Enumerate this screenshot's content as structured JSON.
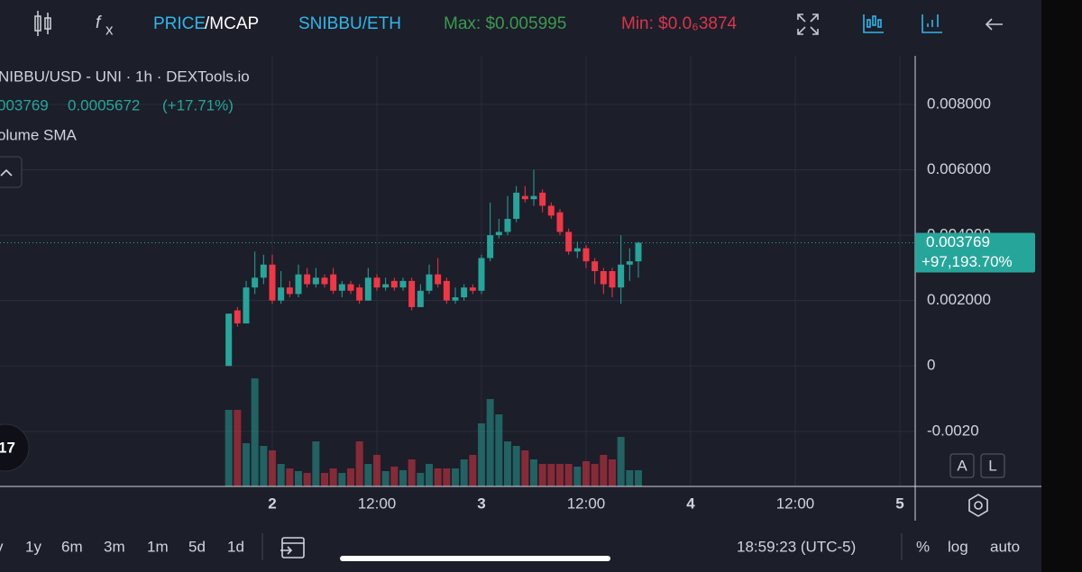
{
  "toolbar": {
    "price": "PRICE",
    "mcap": "/MCAP",
    "pair": "SNIBBU/ETH",
    "max": "Max: $0.005995",
    "min": "Min: $0.0₆3874"
  },
  "legend": {
    "title": "NIBBU/USD - UNI · 1h · DEXTools.io",
    "last": "003769",
    "change": "0.0005672",
    "change_pct": "(+17.71%)",
    "indicator": "olume SMA"
  },
  "footer": {
    "ranges": [
      "y",
      "1y",
      "6m",
      "3m",
      "1m",
      "5d",
      "1d"
    ],
    "clock": "18:59:23 (UTC-5)",
    "pct": "%",
    "log": "log",
    "auto": "auto"
  },
  "scale_buttons": [
    "A",
    "L"
  ],
  "chart_data": {
    "type": "candlestick",
    "ylim": [
      -0.003686,
      0.009486
    ],
    "yticks": [
      {
        "value": 0.008,
        "label": "0.008000"
      },
      {
        "value": 0.006,
        "label": "0.006000"
      },
      {
        "value": 0.004,
        "label": "0.004000"
      },
      {
        "value": 0.002,
        "label": "0.002000"
      },
      0,
      {
        "value": -0.002,
        "label": "-0.0020"
      }
    ],
    "xlim": [
      -31.24,
      73.76
    ],
    "xticks": [
      {
        "value": 0,
        "label": "2"
      },
      {
        "value": 12,
        "label": "12:00"
      },
      {
        "value": 24,
        "label": "3"
      },
      {
        "value": 36,
        "label": "12:00"
      },
      {
        "value": 48,
        "label": "4"
      },
      {
        "value": 60,
        "label": "12:00"
      },
      {
        "value": 72,
        "label": "5"
      }
    ],
    "grid": true,
    "up_color": "#26a69a",
    "down_color": "#f23645",
    "last_price": {
      "value": 0.003769,
      "label": "0.003769"
    },
    "last_change": "+97,193.70%",
    "x": [
      -5,
      -4,
      -3,
      -2,
      -1,
      0,
      1,
      2,
      3,
      4,
      5,
      6,
      7,
      8,
      9,
      10,
      11,
      12,
      13,
      14,
      15,
      16,
      17,
      18,
      19,
      20,
      21,
      22,
      23,
      24,
      25,
      26,
      27,
      28,
      29,
      30,
      31,
      32,
      33,
      34,
      35,
      36,
      37,
      38,
      39,
      40,
      41,
      42
    ],
    "open": [
      0,
      0.0017,
      0.0013,
      0.0024,
      0.0027,
      0.0031,
      0.002,
      0.0024,
      0.0022,
      0.0028,
      0.0025,
      0.0027,
      0.0028,
      0.0023,
      0.0025,
      0.0024,
      0.002,
      0.0027,
      0.0024,
      0.0026,
      0.0024,
      0.0026,
      0.0018,
      0.0023,
      0.0028,
      0.0026,
      0.002,
      0.0021,
      0.0024,
      0.0023,
      0.0033,
      0.004,
      0.0041,
      0.0045,
      0.0052,
      0.0051,
      0.0053,
      0.0049,
      0.0047,
      0.0041,
      0.0035,
      0.0036,
      0.0032,
      0.0029,
      0.0029,
      0.0024,
      0.0031,
      0.0032
    ],
    "high": [
      0.0016,
      0.0018,
      0.0026,
      0.0035,
      0.0034,
      0.0034,
      0.0029,
      0.0026,
      0.0031,
      0.003,
      0.003,
      0.0028,
      0.003,
      0.0026,
      0.0026,
      0.0025,
      0.003,
      0.0028,
      0.0027,
      0.0027,
      0.0027,
      0.0027,
      0.0025,
      0.0031,
      0.0033,
      0.0027,
      0.0024,
      0.0025,
      0.0025,
      0.0034,
      0.005,
      0.0045,
      0.0052,
      0.0055,
      0.0055,
      0.006,
      0.0054,
      0.005,
      0.0048,
      0.0042,
      0.0038,
      0.0037,
      0.0033,
      0.003,
      0.003,
      0.004,
      0.0036,
      0.0038
    ],
    "low": [
      0,
      0.0012,
      0.0013,
      0.0022,
      0.0025,
      0.0019,
      0.0019,
      0.0021,
      0.0021,
      0.0024,
      0.0024,
      0.0024,
      0.0022,
      0.0021,
      0.0022,
      0.0019,
      0.002,
      0.0023,
      0.0023,
      0.0023,
      0.0023,
      0.0017,
      0.0018,
      0.0022,
      0.0024,
      0.0019,
      0.0019,
      0.002,
      0.0022,
      0.0022,
      0.0032,
      0.0039,
      0.004,
      0.0044,
      0.005,
      0.0049,
      0.0047,
      0.0045,
      0.004,
      0.0034,
      0.0033,
      0.003,
      0.0025,
      0.0022,
      0.0021,
      0.0019,
      0.0026,
      0.0027
    ],
    "close": [
      0.0016,
      0.0013,
      0.0024,
      0.0027,
      0.0031,
      0.002,
      0.0024,
      0.0022,
      0.0028,
      0.0025,
      0.0027,
      0.0025,
      0.0023,
      0.0025,
      0.0023,
      0.002,
      0.0027,
      0.0024,
      0.0025,
      0.0024,
      0.0026,
      0.0018,
      0.0023,
      0.0028,
      0.0025,
      0.002,
      0.0021,
      0.0024,
      0.0023,
      0.0033,
      0.004,
      0.0041,
      0.0045,
      0.0053,
      0.0051,
      0.0052,
      0.0049,
      0.0046,
      0.0041,
      0.0035,
      0.0036,
      0.0032,
      0.0029,
      0.0025,
      0.0024,
      0.0031,
      0.0032,
      0.003769
    ],
    "volume_ylim": [
      0,
      135
    ],
    "volume": [
      85,
      85,
      48,
      120,
      45,
      40,
      25,
      20,
      17,
      15,
      50,
      15,
      20,
      15,
      20,
      50,
      25,
      35,
      17,
      22,
      18,
      30,
      15,
      25,
      20,
      20,
      20,
      30,
      35,
      70,
      97,
      80,
      50,
      45,
      40,
      30,
      25,
      25,
      25,
      25,
      22,
      28,
      25,
      35,
      30,
      55,
      18,
      18
    ]
  }
}
